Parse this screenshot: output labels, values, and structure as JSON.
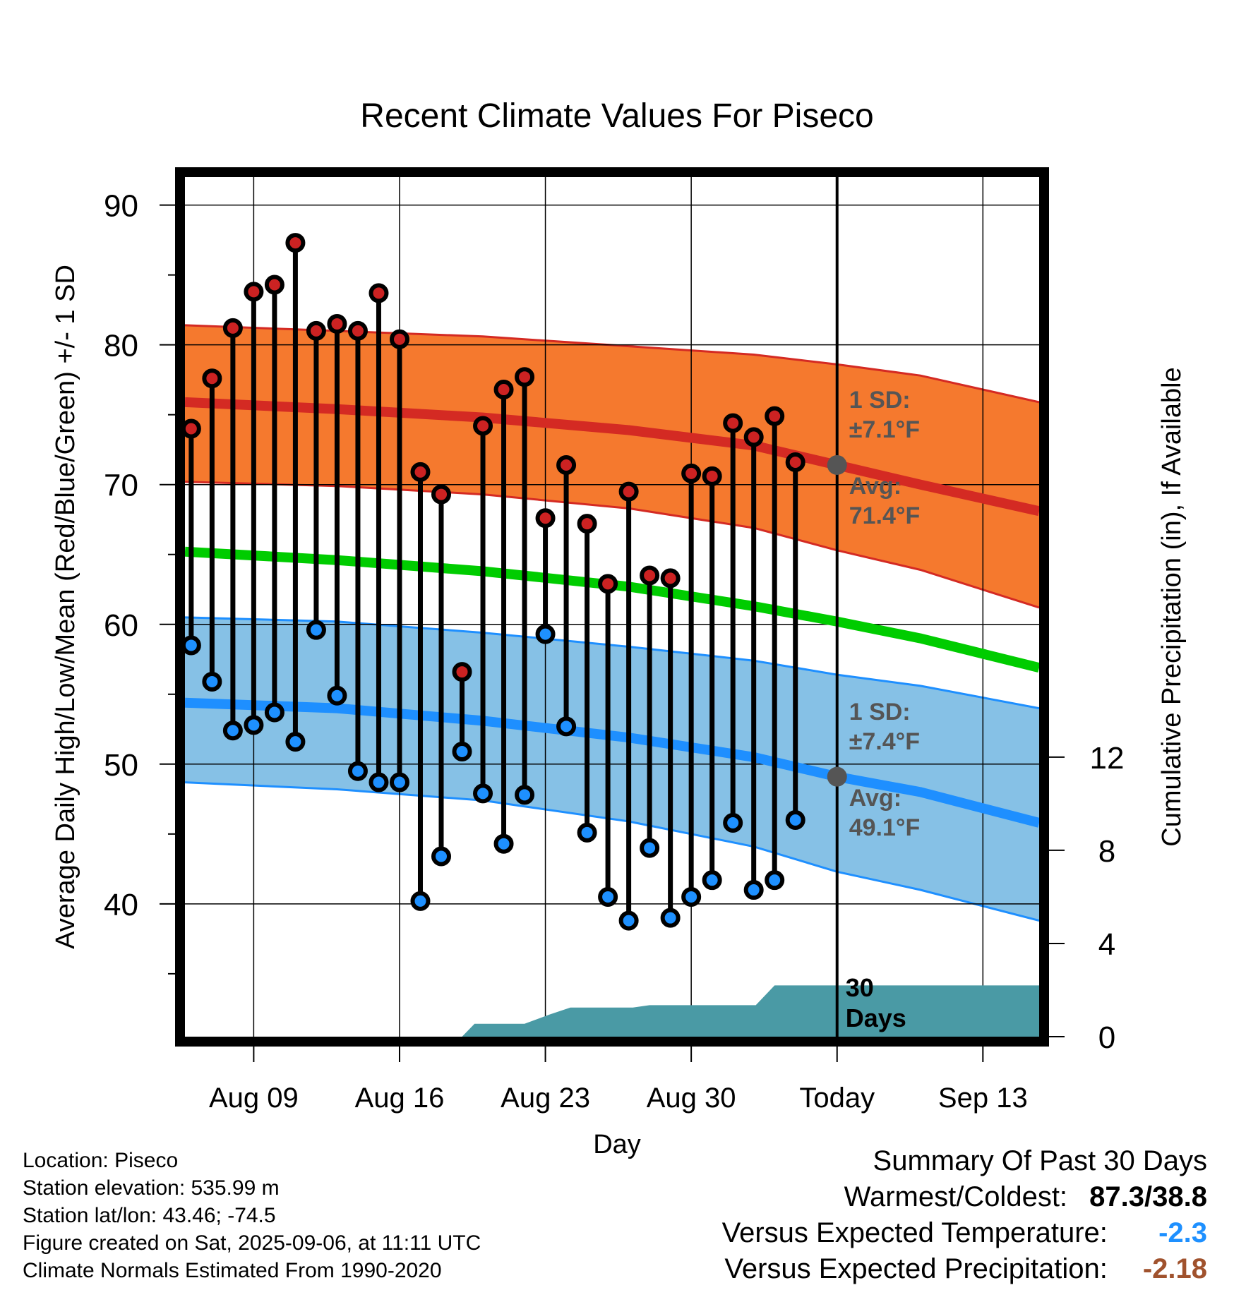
{
  "chart_data": {
    "type": "line",
    "title": "Recent Climate Values For Piseco",
    "xlabel": "Day",
    "ylabel_left": "Average Daily High/Low/Mean (Red/Blue/Green) +/- 1 SD",
    "ylabel_right": "Cumulative Precipitation (in), If Available",
    "ylim": [
      30.5,
      92
    ],
    "y_ticks": [
      40,
      50,
      60,
      70,
      80,
      90
    ],
    "y_minor_ticks": [
      35,
      45,
      55,
      65,
      75,
      85
    ],
    "y2lim": [
      0,
      36.9
    ],
    "y2_ticks": [
      0,
      4,
      8,
      12
    ],
    "x_tick_labels": [
      {
        "day": 9,
        "label": "Aug 09"
      },
      {
        "day": 16,
        "label": "Aug 16"
      },
      {
        "day": 23,
        "label": "Aug 23"
      },
      {
        "day": 30,
        "label": "Aug 30"
      },
      {
        "day": 37,
        "label": "Today"
      },
      {
        "day": 44,
        "label": "Sep 13"
      }
    ],
    "x_day_range": [
      5.7,
      46.7
    ],
    "today_day": 37,
    "normals": {
      "high_avg": [
        [
          5.7,
          75.9
        ],
        [
          13,
          75.4
        ],
        [
          20,
          74.8
        ],
        [
          27,
          73.9
        ],
        [
          33,
          72.8
        ],
        [
          37,
          71.4
        ],
        [
          41,
          70.0
        ],
        [
          46.7,
          68.1
        ]
      ],
      "high_upper": [
        [
          5.7,
          81.4
        ],
        [
          13,
          81.0
        ],
        [
          20,
          80.6
        ],
        [
          27,
          79.9
        ],
        [
          33,
          79.3
        ],
        [
          37,
          78.6
        ],
        [
          41,
          77.8
        ],
        [
          46.7,
          75.9
        ]
      ],
      "high_lower": [
        [
          5.7,
          70.2
        ],
        [
          13,
          69.9
        ],
        [
          20,
          69.3
        ],
        [
          27,
          68.3
        ],
        [
          33,
          66.9
        ],
        [
          37,
          65.3
        ],
        [
          41,
          63.9
        ],
        [
          46.7,
          61.2
        ]
      ],
      "mean": [
        [
          5.7,
          65.2
        ],
        [
          13,
          64.6
        ],
        [
          20,
          63.8
        ],
        [
          27,
          62.7
        ],
        [
          33,
          61.3
        ],
        [
          37,
          60.2
        ],
        [
          41,
          59.0
        ],
        [
          46.7,
          56.9
        ]
      ],
      "low_avg": [
        [
          5.7,
          54.4
        ],
        [
          13,
          54.0
        ],
        [
          20,
          53.1
        ],
        [
          27,
          51.9
        ],
        [
          33,
          50.5
        ],
        [
          37,
          49.1
        ],
        [
          41,
          48.0
        ],
        [
          46.7,
          45.8
        ]
      ],
      "low_upper": [
        [
          5.7,
          60.5
        ],
        [
          13,
          60.2
        ],
        [
          20,
          59.4
        ],
        [
          27,
          58.4
        ],
        [
          33,
          57.4
        ],
        [
          37,
          56.4
        ],
        [
          41,
          55.6
        ],
        [
          46.7,
          54.0
        ]
      ],
      "low_lower": [
        [
          5.7,
          48.7
        ],
        [
          13,
          48.2
        ],
        [
          20,
          47.4
        ],
        [
          27,
          45.9
        ],
        [
          33,
          44.1
        ],
        [
          37,
          42.3
        ],
        [
          41,
          41.0
        ],
        [
          46.7,
          38.8
        ]
      ]
    },
    "series": [
      {
        "name": "High",
        "color": "#cc2222",
        "values": [
          [
            6,
            74.0
          ],
          [
            7,
            77.6
          ],
          [
            8,
            81.2
          ],
          [
            9,
            83.8
          ],
          [
            10,
            84.3
          ],
          [
            11,
            87.3
          ],
          [
            12,
            81.0
          ],
          [
            13,
            81.5
          ],
          [
            14,
            81.0
          ],
          [
            15,
            83.7
          ],
          [
            16,
            80.4
          ],
          [
            17,
            70.9
          ],
          [
            18,
            69.3
          ],
          [
            19,
            56.6
          ],
          [
            20,
            74.2
          ],
          [
            21,
            76.8
          ],
          [
            22,
            77.7
          ],
          [
            23,
            67.6
          ],
          [
            24,
            71.4
          ],
          [
            25,
            67.2
          ],
          [
            26,
            62.9
          ],
          [
            27,
            69.5
          ],
          [
            28,
            63.5
          ],
          [
            29,
            63.3
          ],
          [
            30,
            70.8
          ],
          [
            31,
            70.6
          ],
          [
            32,
            74.4
          ],
          [
            33,
            73.4
          ],
          [
            34,
            74.9
          ],
          [
            35,
            71.6
          ]
        ]
      },
      {
        "name": "Low",
        "color": "#1e90ff",
        "values": [
          [
            6,
            58.5
          ],
          [
            7,
            55.9
          ],
          [
            8,
            52.4
          ],
          [
            9,
            52.8
          ],
          [
            10,
            53.7
          ],
          [
            11,
            51.6
          ],
          [
            12,
            59.6
          ],
          [
            13,
            54.9
          ],
          [
            14,
            49.5
          ],
          [
            15,
            48.7
          ],
          [
            16,
            48.7
          ],
          [
            17,
            40.2
          ],
          [
            18,
            43.4
          ],
          [
            19,
            50.9
          ],
          [
            20,
            47.9
          ],
          [
            21,
            44.3
          ],
          [
            22,
            47.8
          ],
          [
            23,
            59.3
          ],
          [
            24,
            52.7
          ],
          [
            25,
            45.1
          ],
          [
            26,
            40.5
          ],
          [
            27,
            38.8
          ],
          [
            28,
            44.0
          ],
          [
            29,
            39.0
          ],
          [
            30,
            40.5
          ],
          [
            31,
            41.7
          ],
          [
            32,
            45.8
          ],
          [
            33,
            41.0
          ],
          [
            34,
            41.7
          ],
          [
            35,
            46.0
          ]
        ]
      },
      {
        "name": "Cumulative Precipitation",
        "color": "#4a9aa5",
        "values": [
          [
            19,
            0
          ],
          [
            19.6,
            0.55
          ],
          [
            22,
            0.55
          ],
          [
            23.2,
            0.95
          ],
          [
            24.2,
            1.25
          ],
          [
            27.2,
            1.25
          ],
          [
            28,
            1.35
          ],
          [
            33.1,
            1.35
          ],
          [
            34,
            2.2
          ],
          [
            46.7,
            2.2
          ]
        ]
      }
    ],
    "annotations": {
      "high_sd_label": "1 SD:",
      "high_sd_value": "±7.1°F",
      "high_avg_label": "Avg:",
      "high_avg_value": "71.4°F",
      "low_sd_label": "1 SD:",
      "low_sd_value": "±7.4°F",
      "low_avg_label": "Avg:",
      "low_avg_value": "49.1°F",
      "precip_days_1": "30",
      "precip_days_2": "Days"
    },
    "colors": {
      "high_band": "#f5792e",
      "high_line": "#d42a23",
      "low_band": "#86c1e6",
      "low_line": "#1e8fff",
      "mean_line": "#00cc00",
      "precip_fill": "#4a9aa5",
      "annotation_text": "#555555",
      "avg_marker": "#555555"
    }
  },
  "footer": {
    "location": "Location: Piseco",
    "elevation": "Station elevation: 535.99 m",
    "latlon": "Station lat/lon: 43.46; -74.5",
    "created": "Figure created on Sat, 2025-09-06, at 11:11 UTC",
    "normals": "Climate Normals Estimated From 1990-2020"
  },
  "summary": {
    "title": "Summary Of Past 30 Days",
    "warm_cold_label": "Warmest/Coldest:",
    "warm_cold_value": "87.3/38.8",
    "temp_label": "Versus Expected Temperature:",
    "temp_value": "-2.3",
    "precip_label": "Versus Expected Precipitation:",
    "precip_value": "-2.18"
  }
}
